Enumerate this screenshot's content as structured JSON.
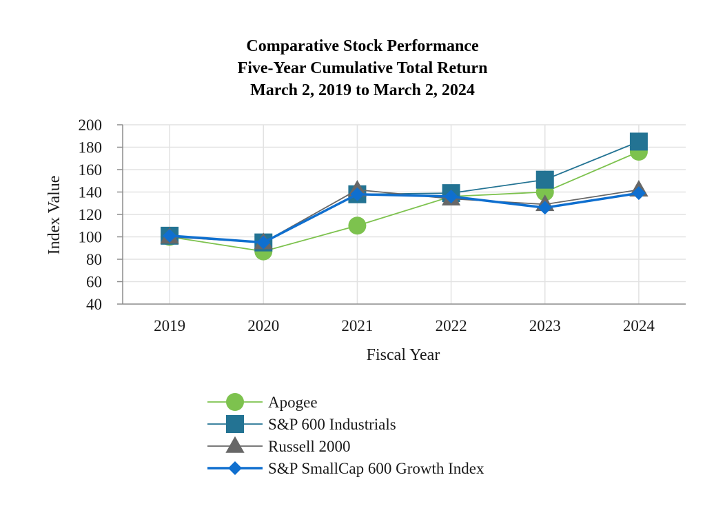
{
  "chart_data": {
    "type": "line",
    "title_lines": [
      "Comparative Stock Performance",
      "Five-Year Cumulative Total Return",
      "March 2, 2019 to March 2, 2024"
    ],
    "xlabel": "Fiscal Year",
    "ylabel": "Index Value",
    "categories": [
      "2019",
      "2020",
      "2021",
      "2022",
      "2023",
      "2024"
    ],
    "ylim": [
      40,
      200
    ],
    "yticks": [
      40,
      60,
      80,
      100,
      120,
      140,
      160,
      180,
      200
    ],
    "grid": true,
    "legend_position": "bottom",
    "series": [
      {
        "name": "Apogee",
        "marker": "circle",
        "color": "#7dc24e",
        "values": [
          100,
          87,
          110,
          136,
          140,
          176
        ]
      },
      {
        "name": "S&P 600 Industrials",
        "marker": "square",
        "color": "#237393",
        "values": [
          101,
          95,
          138,
          139,
          151,
          185
        ]
      },
      {
        "name": "Russell 2000",
        "marker": "triangle",
        "color": "#676767",
        "values": [
          100,
          95,
          142,
          134,
          129,
          142
        ]
      },
      {
        "name": "S&P SmallCap 600 Growth Index",
        "marker": "diamond",
        "color": "#0f6fcf",
        "values": [
          101,
          95,
          138,
          136,
          126,
          139
        ]
      }
    ]
  }
}
